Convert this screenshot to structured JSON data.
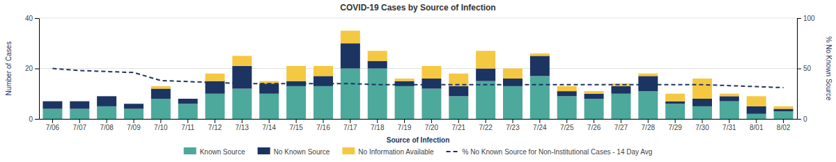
{
  "chart_data": {
    "type": "bar",
    "title": "COVID-19 Cases by Source of Infection",
    "ylabel": "Number of Cases",
    "y2label": "% No Known Source",
    "legend_title": "Source of Infection",
    "categories": [
      "7/06",
      "7/07",
      "7/08",
      "7/09",
      "7/10",
      "7/11",
      "7/12",
      "7/13",
      "7/14",
      "7/15",
      "7/16",
      "7/17",
      "7/18",
      "7/19",
      "7/20",
      "7/21",
      "7/22",
      "7/23",
      "7/24",
      "7/25",
      "7/26",
      "7/27",
      "7/28",
      "7/29",
      "7/30",
      "7/31",
      "8/01",
      "8/02"
    ],
    "stacked": true,
    "series": [
      {
        "name": "Known Source",
        "color": "#4da99b",
        "values": [
          4,
          4,
          5,
          4,
          8,
          6,
          10,
          12,
          10,
          13,
          13,
          20,
          20,
          13,
          12,
          9,
          15,
          13,
          17,
          9,
          8,
          10,
          11,
          6,
          5,
          7,
          2,
          3
        ]
      },
      {
        "name": "No Known Source",
        "color": "#1c3461",
        "values": [
          3,
          3,
          4,
          2,
          4,
          2,
          5,
          9,
          4,
          2,
          4,
          10,
          3,
          2,
          4,
          4,
          5,
          3,
          8,
          2,
          2,
          3,
          6,
          1,
          3,
          2,
          3,
          1
        ]
      },
      {
        "name": "No Information Available",
        "color": "#f5c842",
        "values": [
          0,
          0,
          0,
          0,
          1,
          0,
          3,
          4,
          1,
          6,
          4,
          5,
          4,
          1,
          5,
          5,
          7,
          4,
          1,
          2,
          1,
          1,
          1,
          3,
          8,
          1,
          4,
          1
        ]
      },
      {
        "name": "% No Known Source for Non-Institutional Cases - 14 Day Avg",
        "type": "line",
        "axis": "y2",
        "color": "#1c3461",
        "line_style": "dashed",
        "values": [
          50,
          48,
          47,
          46,
          38,
          37,
          36,
          35,
          35,
          35,
          35,
          35,
          34,
          34,
          34,
          34,
          34,
          34,
          34,
          34,
          34,
          34,
          34,
          34,
          34,
          33,
          32,
          31
        ]
      }
    ],
    "ylim": [
      0,
      40
    ],
    "yticks": [
      0,
      20,
      40
    ],
    "y2lim": [
      0,
      100
    ],
    "y2ticks": [
      0,
      50,
      100
    ],
    "grid": true,
    "legend": "bottom"
  }
}
